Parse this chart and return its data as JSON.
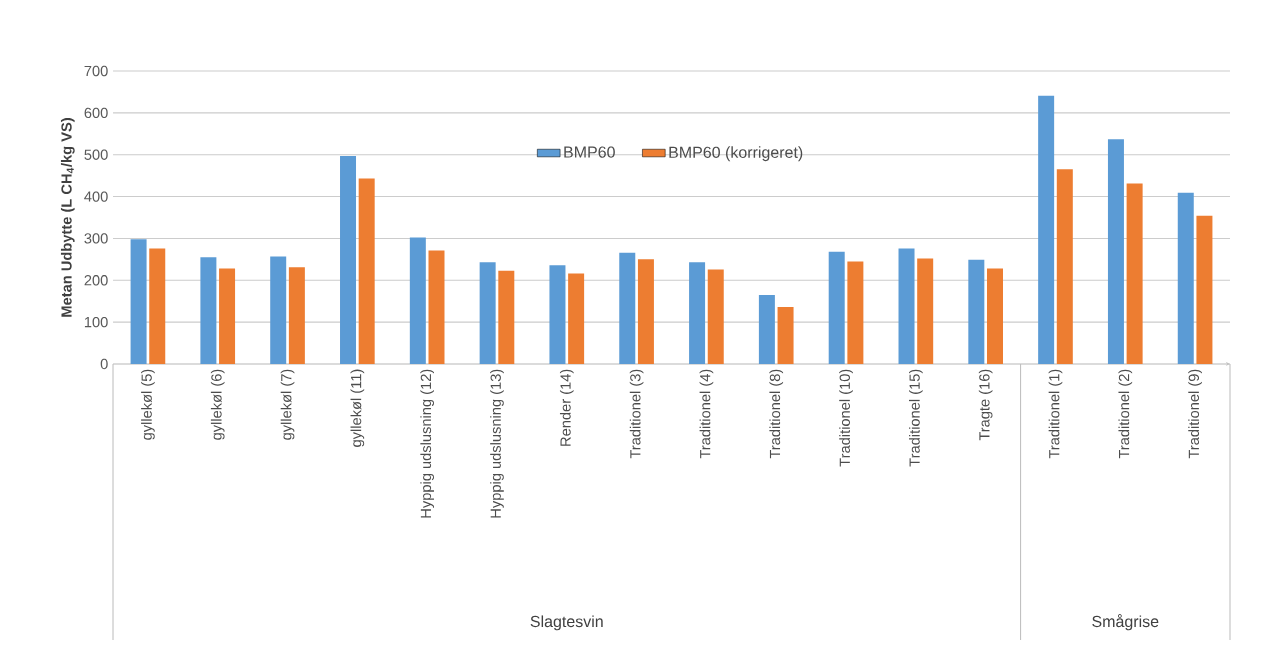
{
  "chart_data": {
    "type": "bar",
    "ylabel": "**Metan Udbytte (L CH$_{4}$/kg VS)**",
    "categories": [
      "gyllekøl (5)",
      "gyllekøl (6)",
      "gyllekøl (7)",
      "gyllekøl (11)",
      "Hyppig udslusning (12)",
      "Hyppig udslusning (13)",
      "Render (14)",
      "Traditionel (3)",
      "Traditionel (4)",
      "Traditionel (8)",
      "Traditionel (10)",
      "Traditionel (15)",
      "Tragte (16)",
      "Traditionel (1)",
      "Traditionel (2)",
      "Traditionel (9)"
    ],
    "series": [
      {
        "name": "BMP60",
        "color": "#5b9bd5",
        "values": [
          298,
          255,
          257,
          497,
          302,
          243,
          236,
          266,
          243,
          165,
          268,
          276,
          249,
          641,
          537,
          409
        ]
      },
      {
        "name": "BMP60 (korrigeret)",
        "color": "#ed7d31",
        "values": [
          276,
          228,
          231,
          443,
          271,
          223,
          216,
          250,
          226,
          136,
          245,
          252,
          228,
          465,
          431,
          354
        ]
      }
    ],
    "ylim": [
      0,
      700
    ],
    "yticks": [
      0,
      100,
      200,
      300,
      400,
      500,
      600,
      700
    ],
    "grid": "y",
    "legend": "top",
    "annotations": [
      "Slagtesvin",
      "Smågrise"
    ]
  }
}
